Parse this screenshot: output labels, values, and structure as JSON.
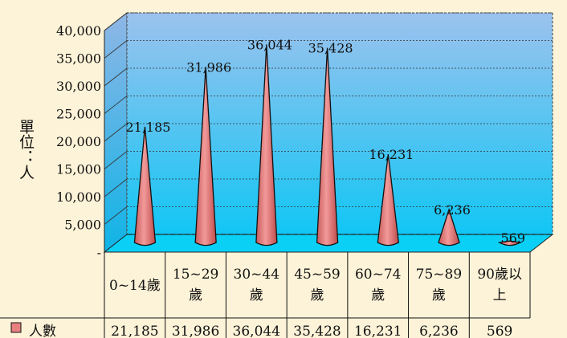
{
  "chart_data": {
    "type": "bar",
    "style": "3d-cone",
    "ylabel": "單位：人",
    "ylim": [
      0,
      40000
    ],
    "yticks": [
      "-",
      "5,000",
      "10,000",
      "15,000",
      "20,000",
      "25,000",
      "30,000",
      "35,000",
      "40,000"
    ],
    "categories": [
      "0~14歲",
      "15~29歲",
      "30~44歲",
      "45~59歲",
      "60~74歲",
      "75~89歲",
      "90歲以上"
    ],
    "category_lines": [
      [
        "0~14歲"
      ],
      [
        "15~29",
        "歲"
      ],
      [
        "30~44",
        "歲"
      ],
      [
        "45~59",
        "歲"
      ],
      [
        "60~74",
        "歲"
      ],
      [
        "75~89",
        "歲"
      ],
      [
        "90歲以",
        "上"
      ]
    ],
    "series": [
      {
        "name": "人數",
        "values": [
          21185,
          31986,
          36044,
          35428,
          16231,
          6236,
          569
        ],
        "labels": [
          "21,185",
          "31,986",
          "36,044",
          "35,428",
          "16,231",
          "6,236",
          "569"
        ]
      }
    ],
    "grid": true,
    "legend": "data-table",
    "colors": {
      "cone": "#e88080",
      "plot_top": "#9cc2ee",
      "plot_bottom": "#12c6f4",
      "background": "#fdf3d8"
    }
  }
}
